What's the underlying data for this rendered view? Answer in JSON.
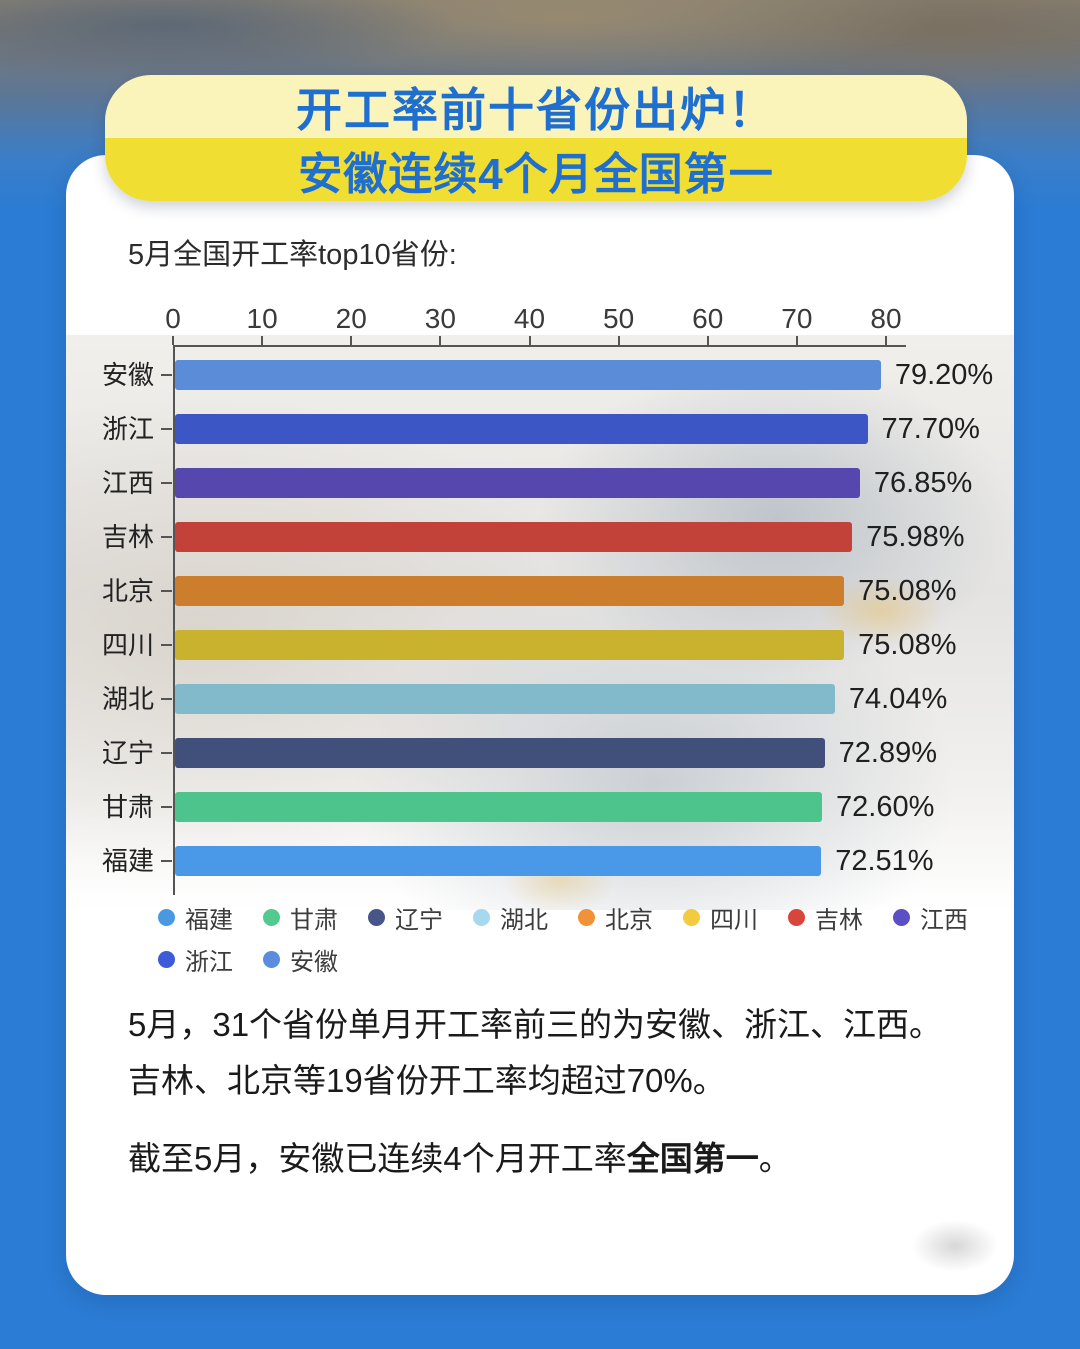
{
  "page": {
    "background_color": "#2b7cd4"
  },
  "banner": {
    "line1": "开工率前十省份出炉！",
    "line2": "安徽连续4个月全国第一",
    "text_color": "#1e6fd0",
    "top_bg": "#faf4bb",
    "bottom_bg": "#f1de32"
  },
  "chart_data": {
    "type": "bar",
    "orientation": "horizontal",
    "title": "5月全国开工率top10省份:",
    "xlabel": "",
    "ylabel": "",
    "xlim": [
      0,
      80
    ],
    "x_ticks": [
      "0",
      "10",
      "20",
      "30",
      "40",
      "50",
      "60",
      "70",
      "80"
    ],
    "grid": false,
    "categories": [
      "安徽",
      "浙江",
      "江西",
      "吉林",
      "北京",
      "四川",
      "湖北",
      "辽宁",
      "甘肃",
      "福建"
    ],
    "values": [
      79.2,
      77.7,
      76.85,
      75.98,
      75.08,
      75.08,
      74.04,
      72.89,
      72.6,
      72.51
    ],
    "value_labels": [
      "79.20%",
      "77.70%",
      "76.85%",
      "75.98%",
      "75.08%",
      "75.08%",
      "74.04%",
      "72.89%",
      "72.60%",
      "72.51%"
    ],
    "bar_colors": [
      "#5b8cd8",
      "#3c56c6",
      "#5547ae",
      "#c24138",
      "#cd7e2d",
      "#c9b22e",
      "#82bacb",
      "#41507a",
      "#4cc48b",
      "#4a99e8"
    ],
    "legend_position": "bottom",
    "legend": [
      {
        "label": "福建",
        "color": "#4a99e0"
      },
      {
        "label": "甘肃",
        "color": "#52c98f"
      },
      {
        "label": "辽宁",
        "color": "#475587"
      },
      {
        "label": "湖北",
        "color": "#a6d9f0"
      },
      {
        "label": "北京",
        "color": "#f09238"
      },
      {
        "label": "四川",
        "color": "#f2cc3e"
      },
      {
        "label": "吉林",
        "color": "#d8453c"
      },
      {
        "label": "江西",
        "color": "#5a4fc4"
      },
      {
        "label": "浙江",
        "color": "#3d5bd8"
      },
      {
        "label": "安徽",
        "color": "#5b8ce0"
      }
    ]
  },
  "body_text": {
    "paragraph1_line1": "5月，31个省份单月开工率前三的为安徽、浙江、江西。",
    "paragraph1_line2": "吉林、北京等19省份开工率均超过70%。",
    "paragraph2_prefix": "截至5月，安徽已连续4个月开工率",
    "paragraph2_bold": "全国第一",
    "paragraph2_suffix": "。"
  }
}
